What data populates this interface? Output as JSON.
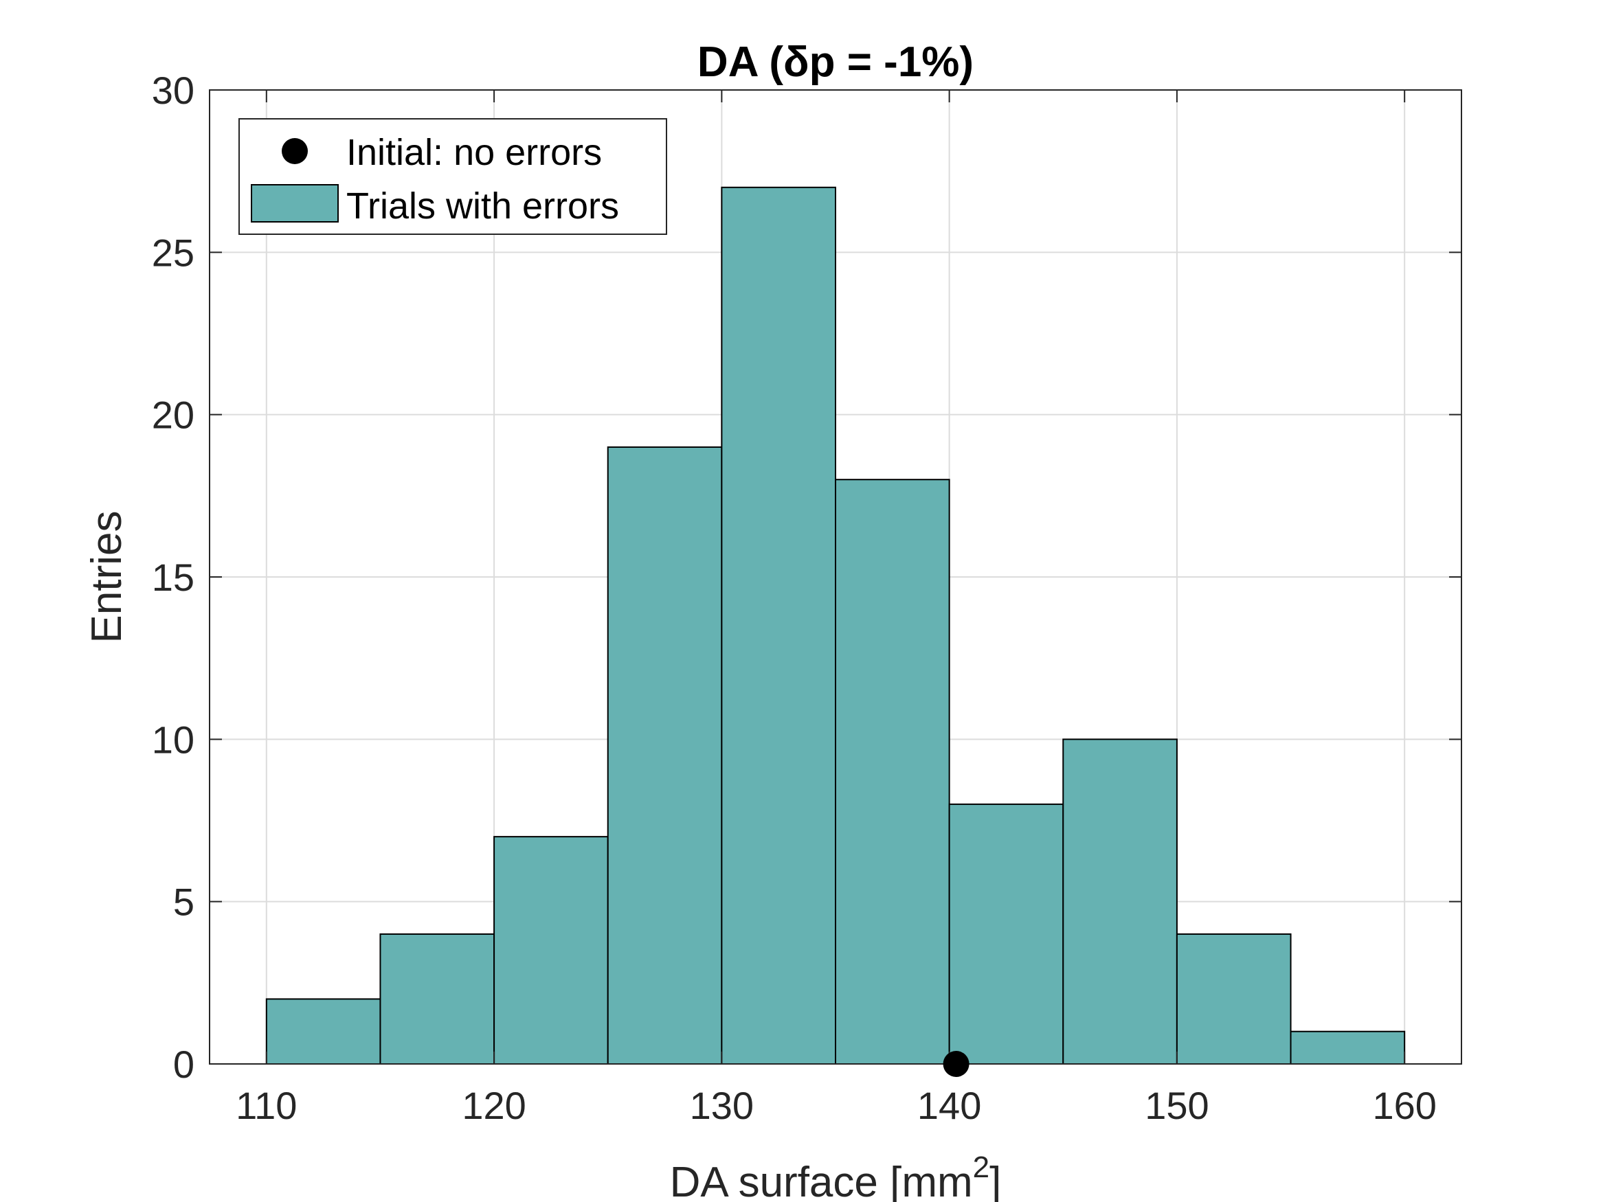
{
  "chart_data": {
    "type": "bar",
    "title": "DA (δp = -1%)",
    "xlabel": "DA surface [mm",
    "xlabel_sup": "2",
    "xlabel_close": "]",
    "ylabel": "Entries",
    "xlim": [
      107.5,
      162.5
    ],
    "ylim": [
      0,
      30
    ],
    "x_ticks": [
      "110",
      "120",
      "130",
      "140",
      "150",
      "160"
    ],
    "y_ticks": [
      "0",
      "5",
      "10",
      "15",
      "20",
      "25",
      "30"
    ],
    "grid": true,
    "legend_position": "top-left",
    "legend": [
      {
        "label": "Initial: no errors",
        "marker": "circle"
      },
      {
        "label": "Trials with errors",
        "marker": "patch"
      }
    ],
    "series": [
      {
        "name": "Trials with errors",
        "type": "histogram",
        "color": "#66b2b2",
        "bin_edges": [
          110,
          115,
          120,
          125,
          130,
          135,
          140,
          145,
          150,
          155,
          160
        ],
        "values": [
          2,
          4,
          7,
          19,
          27,
          18,
          8,
          10,
          4,
          1
        ]
      },
      {
        "name": "Initial: no errors",
        "type": "scatter",
        "color": "#000000",
        "x": [
          140.3
        ],
        "y": [
          0
        ]
      }
    ]
  }
}
